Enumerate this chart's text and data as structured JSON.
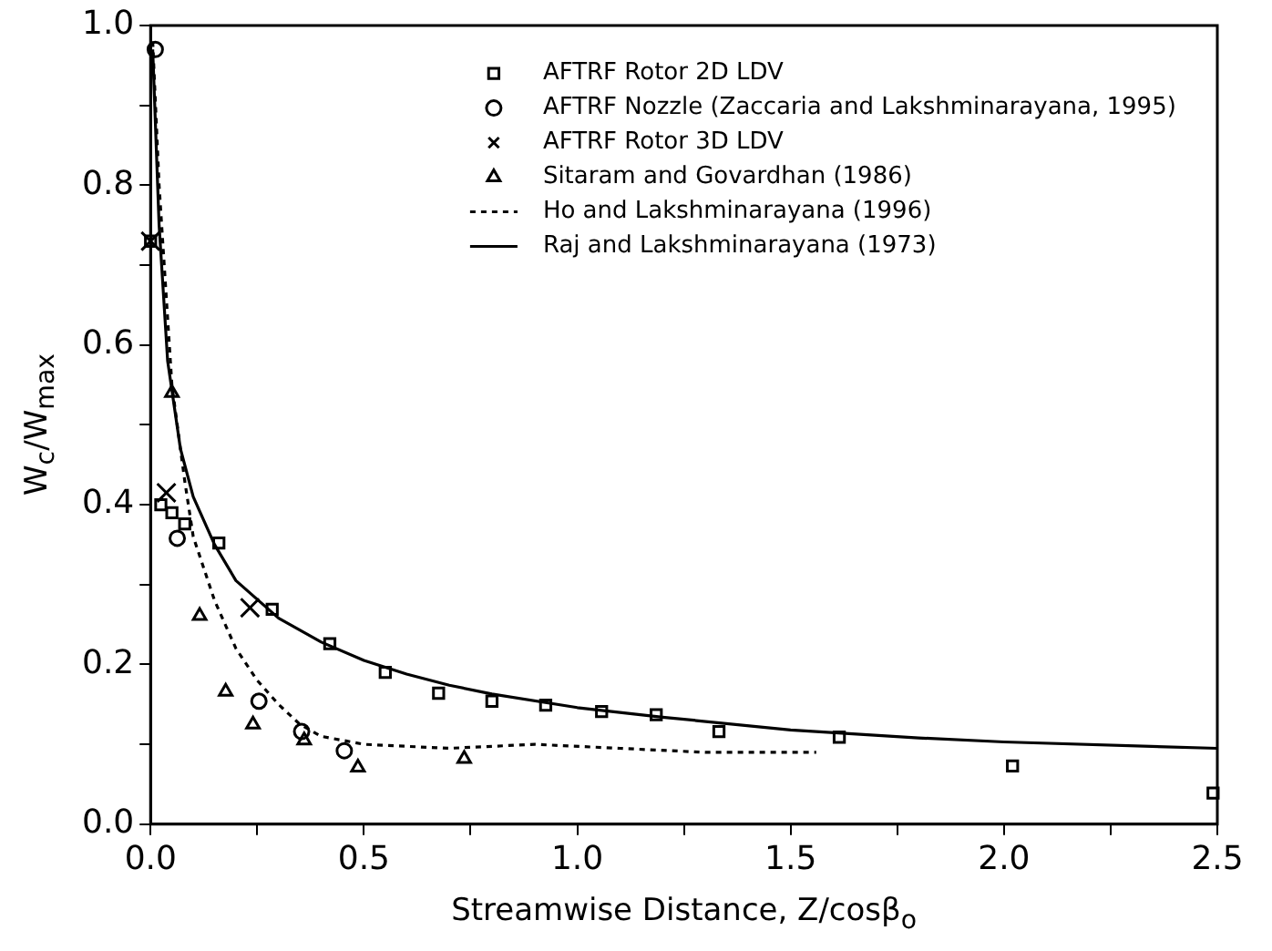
{
  "chart_data": {
    "type": "scatter",
    "xlabel": "Streamwise Distance, Z/cosβ$_{o}$",
    "ylabel": "W$_{c}$/W$_{max}$",
    "xlim": [
      0,
      2.5
    ],
    "ylim": [
      0,
      1.0
    ],
    "xticks": [
      {
        "value": 0,
        "label": "0.0"
      },
      {
        "value": 0.25,
        "label": null
      },
      {
        "value": 0.5,
        "label": "0.5"
      },
      {
        "value": 0.75,
        "label": null
      },
      {
        "value": 1.0,
        "label": "1.0"
      },
      {
        "value": 1.25,
        "label": null
      },
      {
        "value": 1.5,
        "label": "1.5"
      },
      {
        "value": 1.75,
        "label": null
      },
      {
        "value": 2.0,
        "label": "2.0"
      },
      {
        "value": 2.25,
        "label": null
      },
      {
        "value": 2.5,
        "label": "2.5"
      }
    ],
    "yticks": [
      {
        "value": 0,
        "label": "0.0"
      },
      {
        "value": 0.1,
        "label": null
      },
      {
        "value": 0.2,
        "label": "0.2"
      },
      {
        "value": 0.3,
        "label": null
      },
      {
        "value": 0.4,
        "label": "0.4"
      },
      {
        "value": 0.5,
        "label": null
      },
      {
        "value": 0.6,
        "label": "0.6"
      },
      {
        "value": 0.7,
        "label": null
      },
      {
        "value": 0.8,
        "label": "0.8"
      },
      {
        "value": 0.9,
        "label": null
      },
      {
        "value": 1.0,
        "label": "1.0"
      }
    ],
    "grid": false,
    "legend": "top",
    "series": [
      {
        "name": "AFTRF Rotor 2D LDV",
        "marker": "square",
        "color": "#000000",
        "x": [
          0.0,
          0.024,
          0.05,
          0.08,
          0.16,
          0.285,
          0.42,
          0.55,
          0.675,
          0.8,
          0.926,
          1.057,
          1.185,
          1.332,
          1.614,
          2.02,
          2.49
        ],
        "values": [
          0.73,
          0.4,
          0.39,
          0.376,
          0.352,
          0.269,
          0.226,
          0.19,
          0.164,
          0.154,
          0.149,
          0.141,
          0.137,
          0.116,
          0.109,
          0.073,
          0.039
        ]
      },
      {
        "name": "AFTRF Nozzle (Zaccaria and Lakshminarayana, 1995)",
        "marker": "circle",
        "color": "#000000",
        "x": [
          0.011,
          0.0625,
          0.254,
          0.354,
          0.454
        ],
        "values": [
          0.97,
          0.358,
          0.154,
          0.116,
          0.092
        ]
      },
      {
        "name": "AFTRF Rotor 3D LDV",
        "marker": "cross",
        "color": "#000000",
        "x": [
          0.0,
          0.037,
          0.233
        ],
        "values": [
          0.73,
          0.415,
          0.271
        ]
      },
      {
        "name": "Sitaram and Govardhan (1986)",
        "marker": "triangle",
        "color": "#000000",
        "x": [
          0.05,
          0.115,
          0.176,
          0.24,
          0.36,
          0.486,
          0.735
        ],
        "values": [
          0.54,
          0.261,
          0.166,
          0.125,
          0.105,
          0.071,
          0.082
        ]
      },
      {
        "name": "Ho and Lakshminarayana (1996)",
        "type": "line",
        "line_style": "dashed",
        "color": "#000000",
        "x": [
          0.005,
          0.02,
          0.05,
          0.08,
          0.1,
          0.15,
          0.2,
          0.25,
          0.3,
          0.35,
          0.4,
          0.5,
          0.7,
          0.9,
          1.1,
          1.3,
          1.56
        ],
        "values": [
          0.98,
          0.8,
          0.55,
          0.43,
          0.36,
          0.28,
          0.22,
          0.18,
          0.15,
          0.125,
          0.11,
          0.1,
          0.095,
          0.1,
          0.095,
          0.09,
          0.09
        ]
      },
      {
        "name": "Raj and Lakshminarayana (1973)",
        "type": "line",
        "line_style": "solid",
        "color": "#000000",
        "x": [
          0.005,
          0.02,
          0.04,
          0.07,
          0.1,
          0.15,
          0.2,
          0.3,
          0.4,
          0.5,
          0.6,
          0.7,
          0.8,
          1.0,
          1.2,
          1.5,
          1.8,
          2.0,
          2.5
        ],
        "values": [
          0.97,
          0.75,
          0.58,
          0.47,
          0.41,
          0.35,
          0.305,
          0.258,
          0.228,
          0.205,
          0.188,
          0.174,
          0.163,
          0.146,
          0.134,
          0.118,
          0.108,
          0.103,
          0.095
        ]
      }
    ]
  }
}
